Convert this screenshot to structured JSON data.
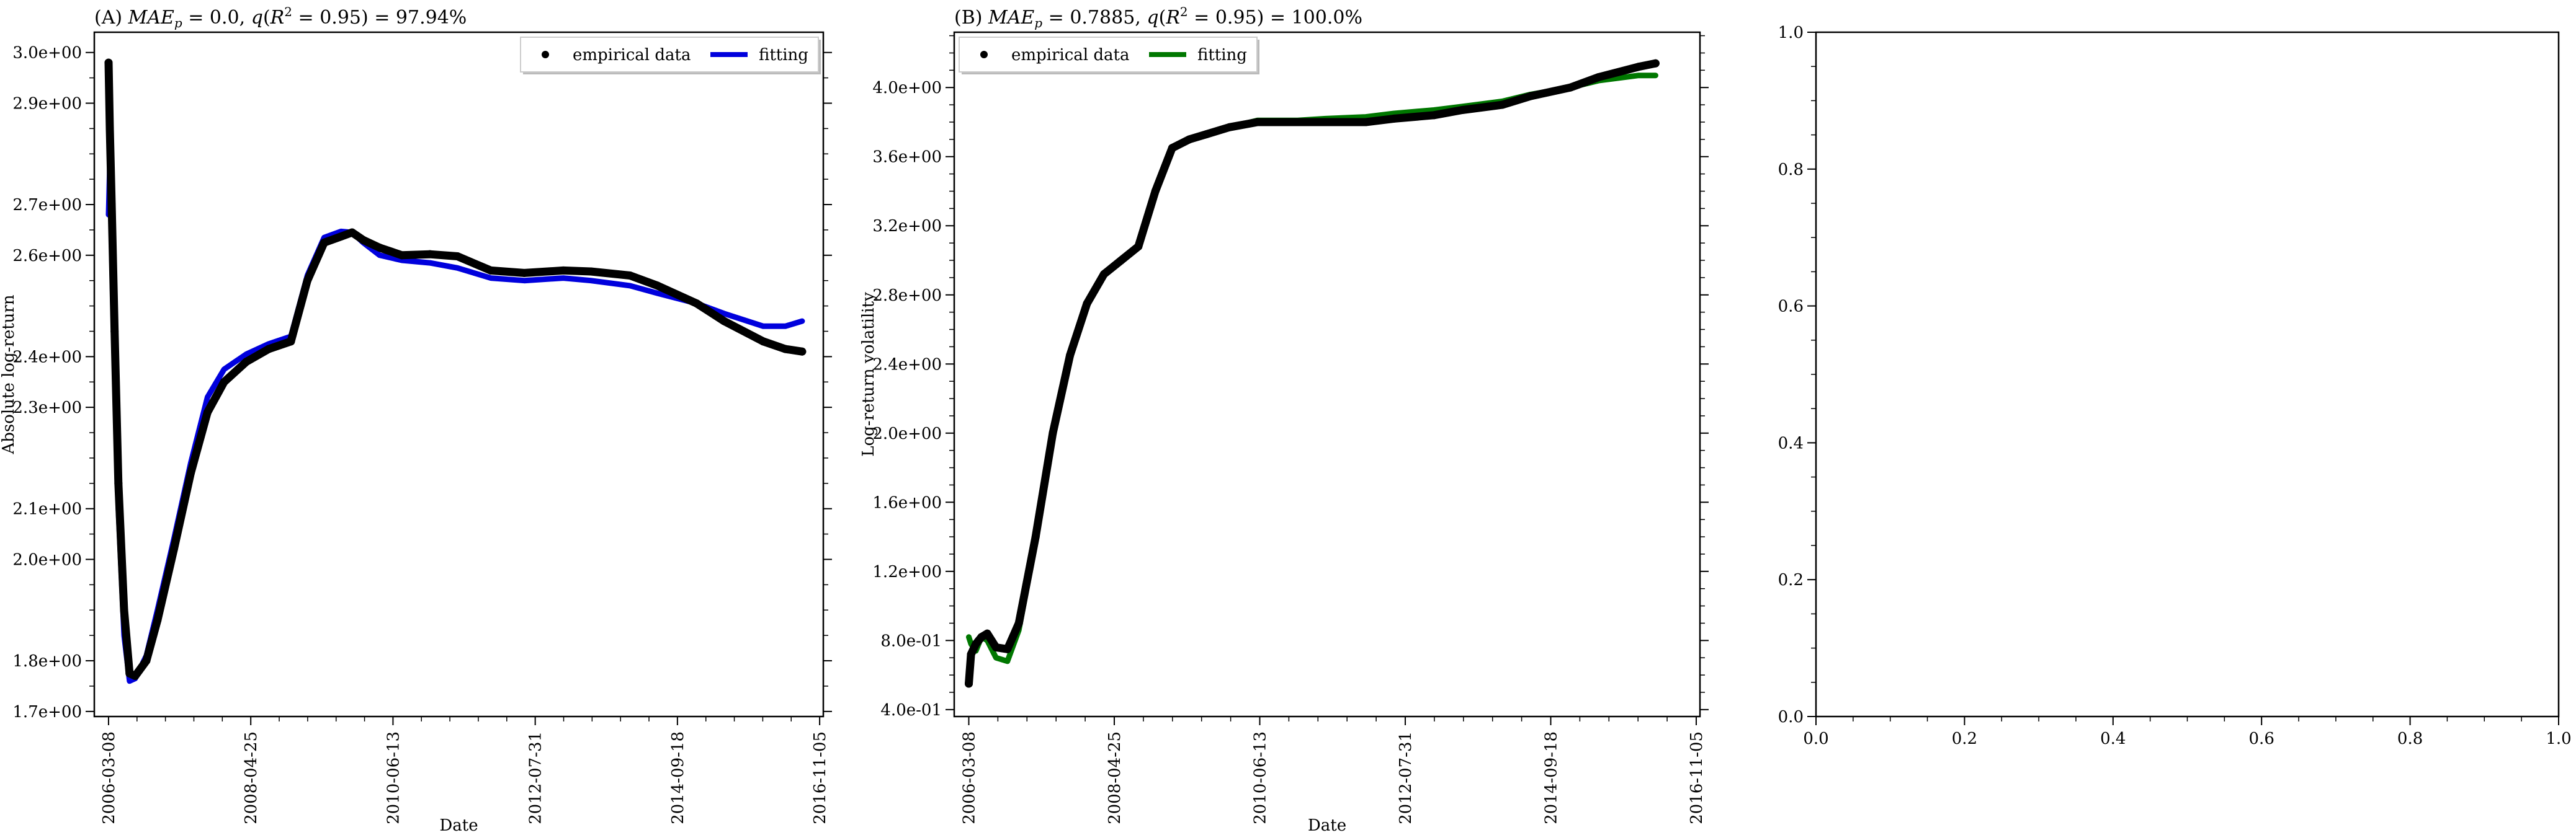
{
  "figure": {
    "background": "#ffffff"
  },
  "chart_data": [
    {
      "id": "A",
      "type": "line",
      "title": "(A) MAE_p = 0.0, q(R² = 0.95) = 97.94%",
      "title_parts": {
        "prefix": "(A) ",
        "mae_symbol": "MAE",
        "mae_sub": "p",
        "mae_value": " = 0.0, ",
        "q_symbol": "q",
        "q_open": "(",
        "r_symbol": "R",
        "r_sup": "2",
        "q_rest": " = 0.95) = 97.94%"
      },
      "xlabel": "Date",
      "ylabel": "Absolute log-return",
      "x_type": "date",
      "xlim": [
        "2005-12-20",
        "2016-11-25"
      ],
      "ylim": [
        1.69,
        3.04
      ],
      "x_ticks": [
        "2006-03-08",
        "2008-04-25",
        "2010-06-13",
        "2012-07-31",
        "2014-09-18",
        "2016-11-05"
      ],
      "y_ticks": [
        1.7,
        1.8,
        2.0,
        2.1,
        2.3,
        2.4,
        2.6,
        2.7,
        2.9,
        3.0
      ],
      "y_tick_labels": [
        "1.7e+00",
        "1.8e+00",
        "2.0e+00",
        "2.1e+00",
        "2.3e+00",
        "2.4e+00",
        "2.6e+00",
        "2.7e+00",
        "2.9e+00",
        "3.0e+00"
      ],
      "legend": {
        "placement": "top-right",
        "entries": [
          "empirical data",
          "fitting"
        ]
      },
      "colors": {
        "empirical": "#000000",
        "fitting": "#0000dd"
      },
      "series": [
        {
          "name": "empirical data",
          "style": "points",
          "x": [
            "2006-03-08",
            "2006-03-15",
            "2006-03-25",
            "2006-04-10",
            "2006-05-01",
            "2006-06-01",
            "2006-07-01",
            "2006-08-01",
            "2006-10-01",
            "2006-12-01",
            "2007-03-01",
            "2007-06-01",
            "2007-09-01",
            "2007-12-01",
            "2008-04-01",
            "2008-08-01",
            "2008-12-01",
            "2009-03-01",
            "2009-06-01",
            "2009-09-01",
            "2009-11-01",
            "2010-01-01",
            "2010-04-01",
            "2010-08-01",
            "2011-01-01",
            "2011-06-01",
            "2011-12-01",
            "2012-06-01",
            "2013-01-01",
            "2013-06-01",
            "2014-01-01",
            "2014-06-01",
            "2015-01-01",
            "2015-06-01",
            "2016-01-01",
            "2016-05-01",
            "2016-08-01"
          ],
          "y": [
            2.98,
            2.85,
            2.7,
            2.45,
            2.15,
            1.9,
            1.775,
            1.77,
            1.8,
            1.88,
            2.02,
            2.17,
            2.29,
            2.35,
            2.39,
            2.415,
            2.43,
            2.55,
            2.625,
            2.637,
            2.645,
            2.63,
            2.615,
            2.6,
            2.602,
            2.598,
            2.57,
            2.565,
            2.57,
            2.568,
            2.56,
            2.54,
            2.505,
            2.47,
            2.43,
            2.415,
            2.41
          ]
        },
        {
          "name": "fitting",
          "style": "line",
          "x": [
            "2006-03-08",
            "2006-03-15",
            "2006-04-01",
            "2006-05-01",
            "2006-06-01",
            "2006-07-01",
            "2006-08-01",
            "2006-10-01",
            "2006-12-01",
            "2007-03-01",
            "2007-06-01",
            "2007-09-01",
            "2007-12-01",
            "2008-04-01",
            "2008-08-01",
            "2008-12-01",
            "2009-03-01",
            "2009-06-01",
            "2009-09-01",
            "2009-11-01",
            "2010-01-01",
            "2010-04-01",
            "2010-08-01",
            "2011-01-01",
            "2011-06-01",
            "2011-12-01",
            "2012-06-01",
            "2013-01-01",
            "2013-06-01",
            "2014-01-01",
            "2014-06-01",
            "2015-01-01",
            "2015-06-01",
            "2016-01-01",
            "2016-05-01",
            "2016-08-01"
          ],
          "y": [
            2.68,
            2.78,
            2.5,
            2.1,
            1.85,
            1.76,
            1.765,
            1.81,
            1.9,
            2.04,
            2.19,
            2.32,
            2.375,
            2.405,
            2.425,
            2.44,
            2.56,
            2.635,
            2.647,
            2.645,
            2.625,
            2.6,
            2.59,
            2.585,
            2.575,
            2.555,
            2.55,
            2.555,
            2.55,
            2.54,
            2.525,
            2.505,
            2.485,
            2.46,
            2.46,
            2.47
          ]
        }
      ]
    },
    {
      "id": "B",
      "type": "line",
      "title": "(B) MAE_p = 0.7885, q(R² = 0.95) = 100.0%",
      "title_parts": {
        "prefix": "(B) ",
        "mae_symbol": "MAE",
        "mae_sub": "p",
        "mae_value": " = 0.7885, ",
        "q_symbol": "q",
        "q_open": "(",
        "r_symbol": "R",
        "r_sup": "2",
        "q_rest": " = 0.95) = 100.0%"
      },
      "xlabel": "Date",
      "ylabel": "Log-return volatility",
      "x_type": "date",
      "xlim": [
        "2005-12-20",
        "2016-11-25"
      ],
      "ylim": [
        0.36,
        4.32
      ],
      "x_ticks": [
        "2006-03-08",
        "2008-04-25",
        "2010-06-13",
        "2012-07-31",
        "2014-09-18",
        "2016-11-05"
      ],
      "y_ticks": [
        0.4,
        0.8,
        1.2,
        1.6,
        2.0,
        2.4,
        2.8,
        3.2,
        3.6,
        4.0
      ],
      "y_tick_labels": [
        "4.0e-01",
        "8.0e-01",
        "1.2e+00",
        "1.6e+00",
        "2.0e+00",
        "2.4e+00",
        "2.8e+00",
        "3.2e+00",
        "3.6e+00",
        "4.0e+00"
      ],
      "legend": {
        "placement": "top-left",
        "entries": [
          "empirical data",
          "fitting"
        ]
      },
      "colors": {
        "empirical": "#000000",
        "fitting": "#007700"
      },
      "series": [
        {
          "name": "empirical data",
          "style": "points",
          "x": [
            "2006-03-08",
            "2006-03-20",
            "2006-04-15",
            "2006-05-15",
            "2006-06-15",
            "2006-08-01",
            "2006-10-01",
            "2006-12-01",
            "2007-03-01",
            "2007-06-01",
            "2007-09-01",
            "2007-12-01",
            "2008-03-01",
            "2008-06-01",
            "2008-09-01",
            "2008-12-01",
            "2009-03-01",
            "2009-06-01",
            "2009-09-01",
            "2010-01-01",
            "2010-06-01",
            "2011-01-01",
            "2011-06-01",
            "2012-01-01",
            "2012-06-01",
            "2013-01-01",
            "2013-06-01",
            "2014-01-01",
            "2014-06-01",
            "2015-01-01",
            "2015-06-01",
            "2016-01-01",
            "2016-04-01"
          ],
          "y": [
            0.55,
            0.72,
            0.78,
            0.82,
            0.84,
            0.76,
            0.75,
            0.9,
            1.4,
            2.0,
            2.45,
            2.75,
            2.92,
            3.0,
            3.08,
            3.4,
            3.65,
            3.7,
            3.73,
            3.77,
            3.8,
            3.8,
            3.8,
            3.8,
            3.82,
            3.84,
            3.87,
            3.9,
            3.95,
            4.0,
            4.06,
            4.12,
            4.14
          ]
        },
        {
          "name": "fitting",
          "style": "line",
          "x": [
            "2006-03-08",
            "2006-03-20",
            "2006-04-15",
            "2006-05-15",
            "2006-06-15",
            "2006-08-01",
            "2006-10-01",
            "2006-12-01",
            "2007-03-01",
            "2007-06-01",
            "2007-09-01",
            "2007-12-01",
            "2008-03-01",
            "2008-06-01",
            "2008-09-01",
            "2008-12-01",
            "2009-03-01",
            "2009-06-01",
            "2009-09-01",
            "2010-01-01",
            "2010-06-01",
            "2011-01-01",
            "2011-06-01",
            "2012-01-01",
            "2012-06-01",
            "2013-01-01",
            "2013-06-01",
            "2014-01-01",
            "2014-06-01",
            "2015-01-01",
            "2015-06-01",
            "2016-01-01",
            "2016-04-01"
          ],
          "y": [
            0.82,
            0.78,
            0.74,
            0.82,
            0.8,
            0.7,
            0.68,
            0.86,
            1.38,
            2.0,
            2.45,
            2.75,
            2.92,
            3.0,
            3.08,
            3.4,
            3.65,
            3.7,
            3.73,
            3.77,
            3.81,
            3.81,
            3.82,
            3.83,
            3.85,
            3.87,
            3.89,
            3.92,
            3.96,
            4.0,
            4.04,
            4.07,
            4.07
          ]
        }
      ]
    },
    {
      "id": "C",
      "type": "line",
      "title": "",
      "xlabel": "",
      "ylabel": "",
      "xlim": [
        0.0,
        1.0
      ],
      "ylim": [
        0.0,
        1.0
      ],
      "x_ticks": [
        0.0,
        0.2,
        0.4,
        0.6,
        0.8,
        1.0
      ],
      "x_tick_labels": [
        "0.0",
        "0.2",
        "0.4",
        "0.6",
        "0.8",
        "1.0"
      ],
      "y_ticks": [
        0.0,
        0.2,
        0.4,
        0.6,
        0.8,
        1.0
      ],
      "y_tick_labels": [
        "0.0",
        "0.2",
        "0.4",
        "0.6",
        "0.8",
        "1.0"
      ],
      "series": []
    }
  ]
}
